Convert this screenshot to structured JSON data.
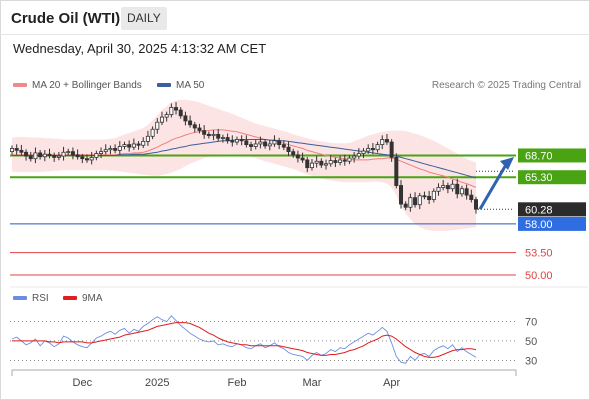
{
  "header": {
    "title": "Crude Oil (WTI)",
    "timeframe": "DAILY",
    "datetime": "Wednesday, April 30, 2025 4:13:32 AM CET",
    "credit": "Research © 2025 Trading Central"
  },
  "legend": {
    "ma20": "MA 20 + Bollinger Bands",
    "ma50": "MA 50",
    "rsi": "RSI",
    "ma9": "9MA"
  },
  "colors": {
    "band_fill": "#fde4e4",
    "ma20": "#f07f7f",
    "ma50": "#3a5f9c",
    "candle": "#333333",
    "green_levels": "#4aa312",
    "blue_level": "#2d55c8",
    "red_levels": "#e04343",
    "arrow": "#2f63b0",
    "rsi": "#6b8fe0",
    "rsi_ma": "#e01e1e"
  },
  "chart_data": [
    {
      "type": "candlestick",
      "title": "Crude Oil (WTI)",
      "y_range": [
        48.6,
        78.0
      ],
      "x_labels": [
        "Dec",
        "2025",
        "Feb",
        "Mar",
        "Apr"
      ],
      "price_levels": [
        {
          "value": 68.7,
          "label": "68.70",
          "kind": "resistance"
        },
        {
          "value": 65.3,
          "label": "65.30",
          "kind": "resistance"
        },
        {
          "value": 60.28,
          "label": "60.28",
          "kind": "last"
        },
        {
          "value": 58.0,
          "label": "58.00",
          "kind": "pivot"
        },
        {
          "value": 53.5,
          "label": "53.50",
          "kind": "support"
        },
        {
          "value": 50.0,
          "label": "50.00",
          "kind": "support"
        }
      ],
      "forecast_arrow": {
        "from": 60.3,
        "to": 68.3
      },
      "close": [
        69.8,
        69.5,
        69.2,
        68.6,
        68.2,
        69.1,
        68.5,
        68.9,
        68.7,
        68.4,
        68.6,
        69.2,
        69.3,
        68.8,
        68.5,
        68.2,
        68.0,
        68.4,
        69.0,
        69.3,
        69.6,
        69.8,
        69.5,
        70.1,
        70.4,
        70.0,
        70.5,
        70.3,
        70.9,
        71.7,
        72.8,
        73.9,
        74.7,
        75.1,
        76.2,
        75.8,
        74.9,
        74.1,
        73.5,
        73.0,
        72.6,
        72.0,
        71.8,
        72.0,
        71.4,
        71.5,
        71.0,
        70.8,
        71.2,
        71.0,
        70.4,
        70.1,
        70.5,
        70.8,
        70.2,
        70.5,
        71.0,
        70.4,
        70.0,
        69.3,
        68.8,
        68.3,
        68.0,
        66.8,
        67.5,
        67.8,
        67.2,
        67.4,
        67.9,
        67.6,
        68.0,
        67.8,
        68.3,
        68.6,
        69.0,
        69.4,
        69.8,
        69.6,
        70.4,
        71.2,
        70.8,
        68.4,
        64.0,
        61.1,
        60.6,
        62.1,
        61.0,
        62.4,
        62.3,
        61.8,
        63.1,
        63.7,
        64.0,
        63.5,
        64.2,
        62.7,
        63.5,
        62.5,
        61.8,
        60.3
      ],
      "open": [
        69.3,
        69.8,
        69.5,
        69.2,
        68.6,
        68.2,
        69.1,
        68.5,
        68.9,
        68.7,
        68.4,
        68.6,
        69.2,
        69.3,
        68.8,
        68.5,
        68.2,
        68.0,
        68.4,
        69.0,
        69.3,
        69.6,
        69.8,
        69.5,
        70.1,
        70.4,
        70.0,
        70.5,
        70.3,
        70.9,
        71.7,
        72.8,
        73.9,
        74.7,
        75.1,
        76.2,
        75.8,
        74.9,
        74.1,
        73.5,
        73.0,
        72.6,
        72.0,
        71.8,
        72.0,
        71.4,
        71.5,
        71.0,
        70.8,
        71.2,
        71.0,
        70.4,
        70.1,
        70.5,
        70.8,
        70.2,
        70.5,
        71.0,
        70.4,
        70.0,
        69.3,
        68.8,
        68.3,
        68.0,
        66.8,
        67.5,
        67.8,
        67.2,
        67.4,
        67.9,
        67.6,
        68.0,
        67.8,
        68.3,
        68.6,
        69.0,
        69.4,
        69.8,
        69.6,
        70.4,
        71.2,
        70.8,
        68.4,
        64.0,
        61.1,
        60.6,
        62.1,
        61.0,
        62.4,
        62.3,
        61.8,
        63.1,
        63.7,
        64.0,
        63.5,
        64.2,
        62.7,
        63.5,
        62.5,
        61.8
      ],
      "ma20": [
        68.8,
        68.8,
        68.8,
        68.8,
        68.8,
        68.8,
        68.8,
        68.8,
        68.8,
        68.8,
        68.8,
        68.8,
        68.8,
        68.8,
        68.8,
        68.8,
        68.8,
        68.8,
        68.8,
        68.8,
        68.8,
        68.8,
        68.8,
        68.9,
        69.0,
        69.0,
        69.1,
        69.1,
        69.2,
        69.4,
        69.7,
        70.0,
        70.4,
        70.7,
        71.1,
        71.4,
        71.6,
        71.9,
        72.1,
        72.3,
        72.4,
        72.5,
        72.6,
        72.7,
        72.7,
        72.7,
        72.6,
        72.5,
        72.4,
        72.2,
        72.0,
        71.8,
        71.6,
        71.4,
        71.2,
        71.1,
        71.0,
        70.8,
        70.6,
        70.4,
        70.2,
        70.0,
        69.8,
        69.5,
        69.3,
        69.1,
        68.9,
        68.7,
        68.6,
        68.4,
        68.3,
        68.2,
        68.1,
        68.0,
        68.0,
        68.0,
        68.0,
        68.1,
        68.2,
        68.2,
        68.3,
        68.3,
        68.1,
        67.8,
        67.5,
        67.2,
        66.9,
        66.6,
        66.4,
        66.1,
        65.9,
        65.7,
        65.5,
        65.3,
        65.0,
        64.8,
        64.5,
        64.3,
        64.0,
        63.7
      ],
      "ma50": [
        68.7,
        68.7,
        68.7,
        68.7,
        68.7,
        68.7,
        68.7,
        68.7,
        68.7,
        68.7,
        68.7,
        68.7,
        68.7,
        68.7,
        68.7,
        68.7,
        68.7,
        68.7,
        68.7,
        68.7,
        68.7,
        68.7,
        68.7,
        68.8,
        68.8,
        68.8,
        68.9,
        68.9,
        68.9,
        69.0,
        69.1,
        69.2,
        69.4,
        69.5,
        69.7,
        69.8,
        70.0,
        70.1,
        70.3,
        70.4,
        70.5,
        70.6,
        70.7,
        70.8,
        70.9,
        71.0,
        71.0,
        71.1,
        71.1,
        71.2,
        71.2,
        71.2,
        71.2,
        71.2,
        71.2,
        71.1,
        71.1,
        71.0,
        71.0,
        70.9,
        70.8,
        70.7,
        70.6,
        70.5,
        70.4,
        70.3,
        70.2,
        70.1,
        70.0,
        69.9,
        69.8,
        69.7,
        69.6,
        69.5,
        69.4,
        69.3,
        69.2,
        69.1,
        69.0,
        68.9,
        68.8,
        68.7,
        68.6,
        68.4,
        68.2,
        68.0,
        67.8,
        67.6,
        67.4,
        67.2,
        67.0,
        66.8,
        66.6,
        66.4,
        66.2,
        66.0,
        65.8,
        65.6,
        65.4,
        65.2
      ],
      "bb_upper": [
        71.5,
        71.6,
        71.6,
        71.6,
        71.5,
        71.5,
        71.5,
        71.4,
        71.4,
        71.3,
        71.3,
        71.2,
        71.2,
        71.2,
        71.2,
        71.2,
        71.2,
        71.2,
        71.2,
        71.2,
        71.2,
        71.3,
        71.4,
        71.7,
        72.0,
        72.2,
        72.5,
        72.7,
        73.0,
        73.5,
        74.2,
        75.0,
        75.8,
        76.4,
        77.0,
        77.3,
        77.4,
        77.4,
        77.3,
        77.2,
        77.0,
        76.7,
        76.5,
        76.2,
        76.0,
        75.7,
        75.5,
        75.2,
        74.9,
        74.6,
        74.3,
        74.0,
        73.7,
        73.5,
        73.3,
        73.1,
        72.9,
        72.7,
        72.5,
        72.3,
        72.0,
        71.8,
        71.6,
        71.4,
        71.2,
        71.0,
        70.9,
        70.8,
        70.7,
        70.6,
        70.6,
        70.6,
        70.7,
        70.9,
        71.2,
        71.5,
        71.8,
        72.0,
        72.2,
        72.4,
        72.5,
        72.6,
        72.6,
        72.6,
        72.5,
        72.3,
        72.1,
        71.9,
        71.6,
        71.3,
        71.0,
        70.6,
        70.2,
        69.8,
        69.4,
        69.0,
        68.6,
        68.2,
        67.9,
        67.6
      ],
      "bb_lower": [
        66.2,
        66.1,
        66.1,
        66.1,
        66.1,
        66.1,
        66.1,
        66.2,
        66.2,
        66.3,
        66.3,
        66.4,
        66.4,
        66.4,
        66.4,
        66.4,
        66.4,
        66.4,
        66.4,
        66.4,
        66.4,
        66.3,
        66.3,
        66.2,
        66.1,
        66.0,
        65.9,
        65.8,
        65.7,
        65.6,
        65.5,
        65.5,
        65.6,
        65.8,
        66.0,
        66.3,
        66.6,
        67.0,
        67.4,
        67.7,
        68.0,
        68.3,
        68.5,
        68.7,
        68.8,
        68.9,
        68.9,
        68.9,
        68.9,
        68.8,
        68.7,
        68.5,
        68.3,
        68.0,
        67.8,
        67.6,
        67.4,
        67.2,
        67.0,
        66.8,
        66.6,
        66.3,
        66.0,
        65.7,
        65.5,
        65.3,
        65.1,
        64.9,
        64.8,
        64.7,
        64.6,
        64.5,
        64.5,
        64.5,
        64.5,
        64.5,
        64.5,
        64.6,
        64.6,
        64.5,
        64.3,
        63.7,
        62.5,
        60.8,
        59.6,
        58.7,
        58.0,
        57.5,
        57.2,
        57.0,
        56.9,
        56.9,
        56.9,
        56.9,
        57.0,
        57.1,
        57.2,
        57.3,
        57.4,
        57.5
      ]
    },
    {
      "type": "line",
      "title": "RSI",
      "y_range": [
        22,
        82
      ],
      "y_ticks": [
        70,
        50,
        30
      ],
      "series": [
        {
          "name": "RSI",
          "values": [
            52,
            54,
            50,
            46,
            48,
            52,
            45,
            50,
            48,
            44,
            47,
            55,
            53,
            49,
            46,
            44,
            43,
            48,
            53,
            55,
            58,
            60,
            57,
            61,
            63,
            58,
            62,
            60,
            65,
            68,
            72,
            75,
            72,
            70,
            76,
            71,
            66,
            62,
            58,
            55,
            52,
            50,
            49,
            50,
            46,
            47,
            45,
            44,
            47,
            46,
            43,
            42,
            45,
            47,
            43,
            45,
            48,
            44,
            42,
            38,
            36,
            35,
            34,
            30,
            35,
            38,
            35,
            37,
            41,
            39,
            43,
            42,
            46,
            49,
            52,
            55,
            58,
            56,
            60,
            64,
            60,
            48,
            34,
            28,
            27,
            34,
            30,
            36,
            37,
            34,
            40,
            43,
            45,
            42,
            46,
            39,
            43,
            39,
            36,
            33
          ]
        },
        {
          "name": "9MA",
          "values": [
            50,
            50,
            50,
            50,
            50,
            50,
            50,
            50,
            49,
            49,
            48,
            49,
            49,
            49,
            49,
            49,
            48,
            48,
            49,
            50,
            51,
            52,
            53,
            54,
            56,
            57,
            58,
            59,
            60,
            61,
            63,
            65,
            66,
            67,
            68,
            69,
            69,
            69,
            68,
            66,
            64,
            61,
            58,
            56,
            53,
            51,
            49,
            48,
            47,
            46,
            46,
            45,
            45,
            45,
            45,
            45,
            45,
            45,
            44,
            43,
            42,
            41,
            40,
            38,
            37,
            36,
            35,
            35,
            36,
            36,
            37,
            38,
            40,
            41,
            43,
            45,
            48,
            50,
            52,
            55,
            56,
            55,
            52,
            48,
            44,
            41,
            38,
            36,
            34,
            33,
            33,
            34,
            36,
            38,
            40,
            41,
            41,
            42,
            42,
            41
          ]
        }
      ]
    }
  ]
}
